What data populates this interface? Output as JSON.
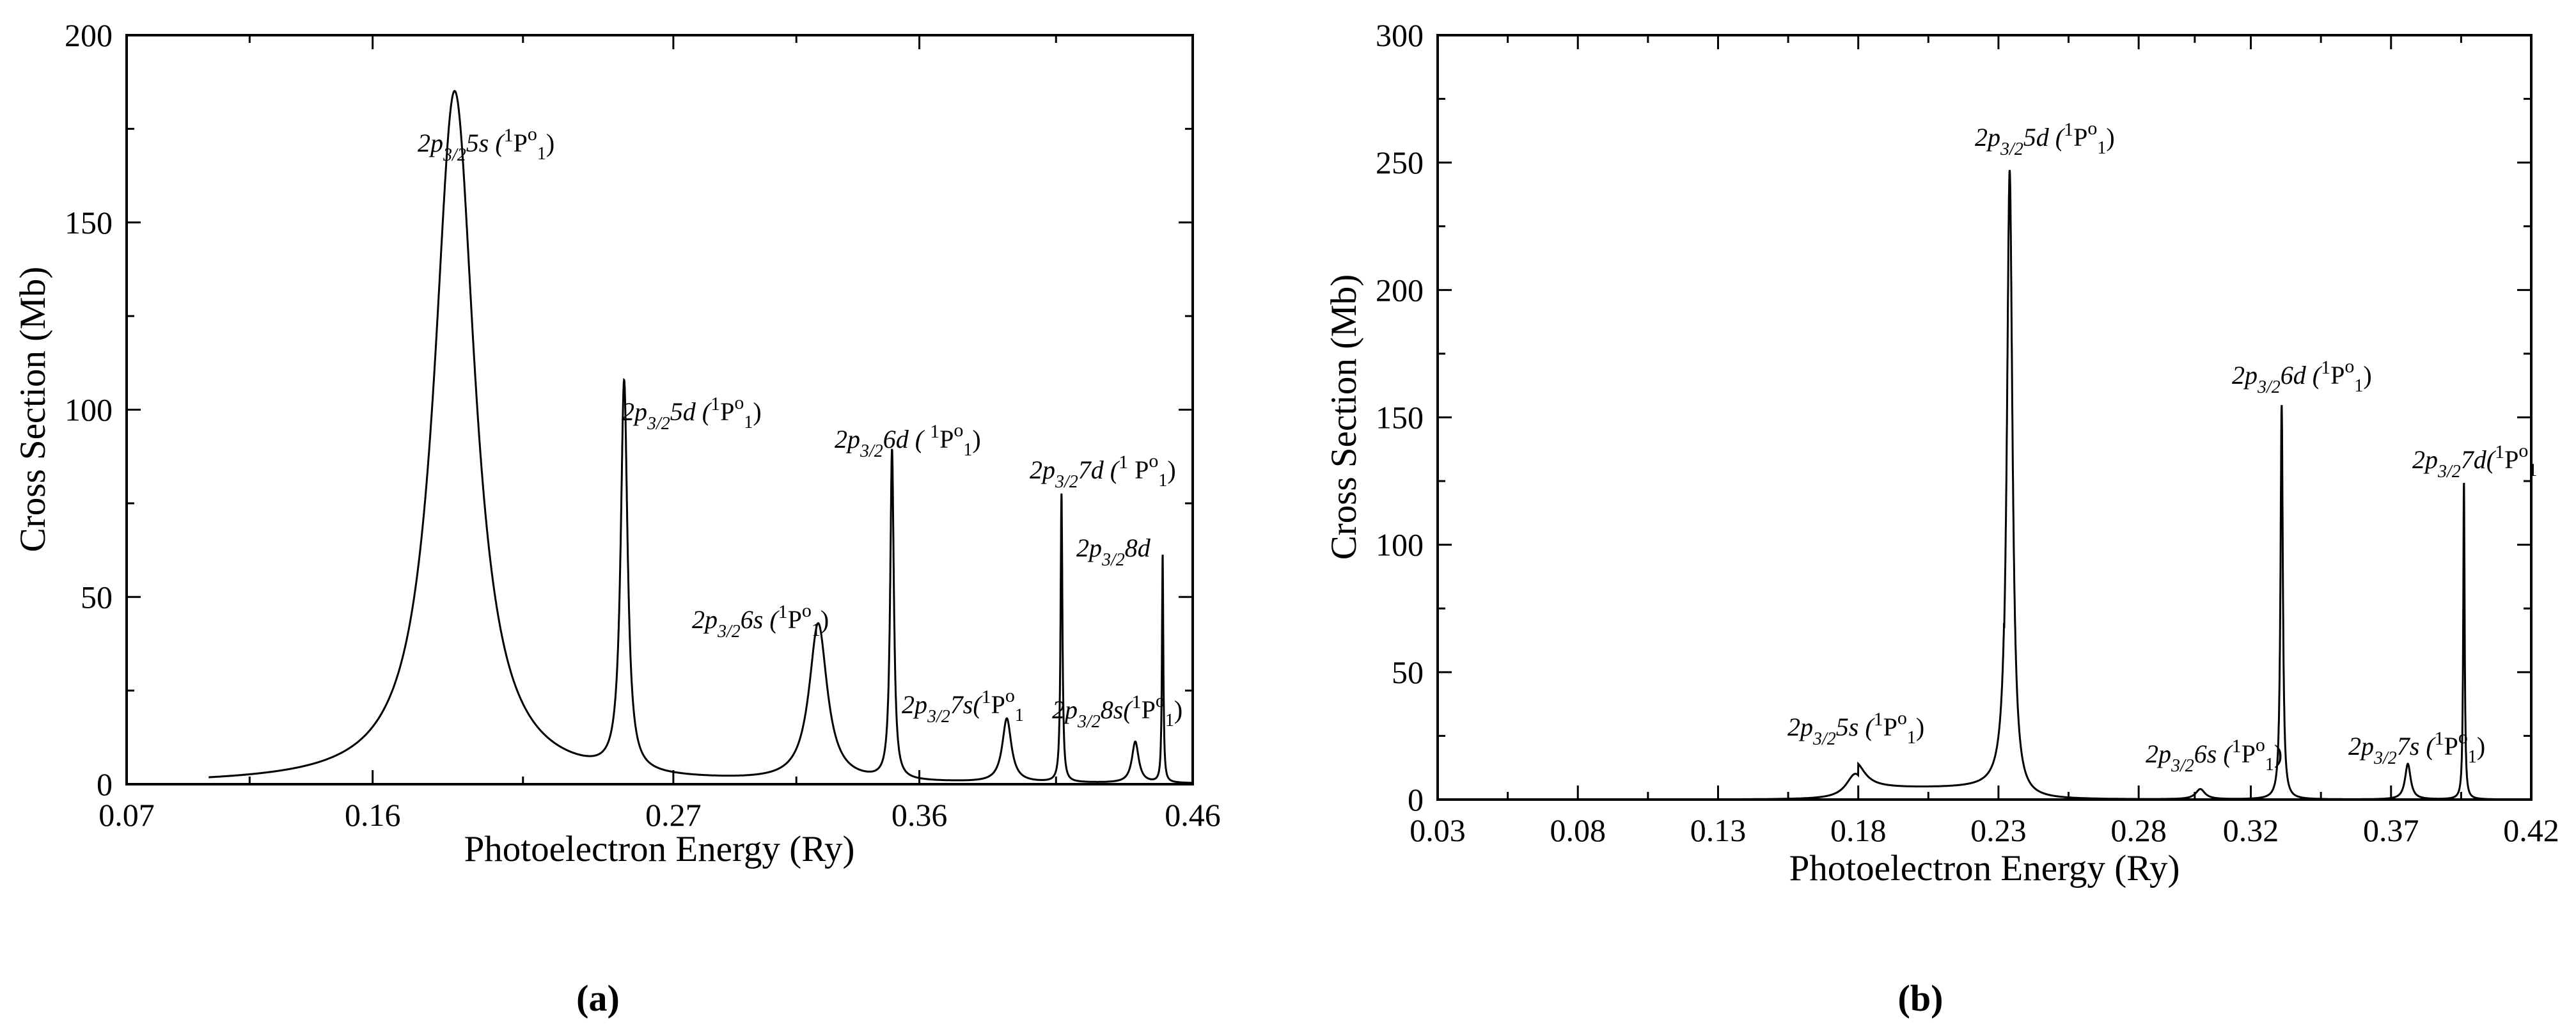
{
  "chart_data": [
    {
      "type": "line",
      "panel": "(a)",
      "xlabel": "Photoelectron Energy (Ry)",
      "ylabel": "Cross Section (Mb)",
      "xlim": [
        0.07,
        0.46
      ],
      "ylim": [
        0,
        200
      ],
      "xticks": [
        "0.07",
        "0.16",
        "0.27",
        "0.36",
        "0.46"
      ],
      "yticks": [
        "0",
        "50",
        "100",
        "150",
        "200"
      ],
      "grid": false,
      "legend": "none",
      "peaks": [
        {
          "x": 0.19,
          "y": 185,
          "width": 0.009
        },
        {
          "x": 0.252,
          "y": 104,
          "width": 0.0015
        },
        {
          "x": 0.323,
          "y": 42,
          "width": 0.004
        },
        {
          "x": 0.35,
          "y": 88,
          "width": 0.0008
        },
        {
          "x": 0.392,
          "y": 17,
          "width": 0.002
        },
        {
          "x": 0.412,
          "y": 77,
          "width": 0.0004
        },
        {
          "x": 0.439,
          "y": 11,
          "width": 0.0015
        },
        {
          "x": 0.449,
          "y": 61,
          "width": 0.0003
        }
      ],
      "annotations": [
        {
          "id": "5s",
          "pre": "2p",
          "sub": "3/2",
          "mid": "5s (",
          "sup1": "1",
          "P": "P",
          "supo": "o",
          "sub1": "1",
          "close": ")"
        },
        {
          "id": "5d",
          "pre": "2p",
          "sub": "3/2",
          "mid": "5d (",
          "sup1": "1",
          "P": "P",
          "supo": "o",
          "sub1": "1",
          "close": ")"
        },
        {
          "id": "6d",
          "pre": "2p",
          "sub": "3/2",
          "mid": "6d ( ",
          "sup1": "1",
          "P": "P",
          "supo": "o",
          "sub1": "1",
          "close": ")"
        },
        {
          "id": "7d",
          "pre": "2p",
          "sub": "3/2",
          "mid": "7d (",
          "sup1": "1",
          "P": " P",
          "supo": "o",
          "sub1": "1",
          "close": ")"
        },
        {
          "id": "8d",
          "pre": "2p",
          "sub": "3/2",
          "mid": "8d",
          "sup1": "",
          "P": "",
          "supo": "",
          "sub1": "",
          "close": ""
        },
        {
          "id": "6s",
          "pre": "2p",
          "sub": "3/2",
          "mid": "6s (",
          "sup1": "1",
          "P": "P",
          "supo": "o",
          "sub1": "1",
          "close": ")"
        },
        {
          "id": "7s",
          "pre": "2p",
          "sub": "3/2",
          "mid": "7s(",
          "sup1": "1",
          "P": "P",
          "supo": "o",
          "sub1": "1",
          "close": ""
        },
        {
          "id": "8s",
          "pre": "2p",
          "sub": "3/2",
          "mid": "8s(",
          "sup1": "1",
          "P": "P",
          "supo": "o",
          "sub1": "1",
          "close": ")"
        }
      ]
    },
    {
      "type": "line",
      "panel": "(b)",
      "xlabel": "Photoelectron Energy (Ry)",
      "ylabel": "Cross Section (Mb)",
      "xlim": [
        0.03,
        0.42
      ],
      "ylim": [
        0,
        300
      ],
      "xticks": [
        "0.03",
        "0.08",
        "0.13",
        "0.18",
        "0.23",
        "0.28",
        "0.32",
        "0.37",
        "0.42"
      ],
      "yticks": [
        "0",
        "50",
        "100",
        "150",
        "200",
        "250",
        "300"
      ],
      "grid": false,
      "legend": "none",
      "peaks": [
        {
          "x": 0.179,
          "y": 10,
          "width": 0.004
        },
        {
          "x": 0.234,
          "y": 247,
          "width": 0.0012
        },
        {
          "x": 0.302,
          "y": 4,
          "width": 0.002
        },
        {
          "x": 0.331,
          "y": 155,
          "width": 0.0005
        },
        {
          "x": 0.376,
          "y": 14,
          "width": 0.0012
        },
        {
          "x": 0.396,
          "y": 125,
          "width": 0.0003
        }
      ],
      "annotations": [
        {
          "id": "5d",
          "pre": "2p",
          "sub": "3/2",
          "mid": "5d (",
          "sup1": "1",
          "P": "P",
          "supo": "o",
          "sub1": "1",
          "close": ")"
        },
        {
          "id": "6d",
          "pre": "2p",
          "sub": "3/2",
          "mid": "6d (",
          "sup1": "1",
          "P": "P",
          "supo": "o",
          "sub1": "1",
          "close": ")"
        },
        {
          "id": "7d",
          "pre": "2p",
          "sub": "3/2",
          "mid": "7d(",
          "sup1": "1",
          "P": "P",
          "supo": "o",
          "sub1": "1",
          "close": ""
        },
        {
          "id": "5s",
          "pre": "2p",
          "sub": "3/2",
          "mid": "5s (",
          "sup1": "1",
          "P": "P",
          "supo": "o",
          "sub1": "1",
          "close": ")"
        },
        {
          "id": "6s",
          "pre": "2p",
          "sub": "3/2",
          "mid": "6s (",
          "sup1": "1",
          "P": "P",
          "supo": "o",
          "sub1": "1",
          "close": ")"
        },
        {
          "id": "7s",
          "pre": "2p",
          "sub": "3/2",
          "mid": "7s (",
          "sup1": "1",
          "P": "P",
          "supo": "o",
          "sub1": "1",
          "close": ")"
        }
      ]
    }
  ]
}
